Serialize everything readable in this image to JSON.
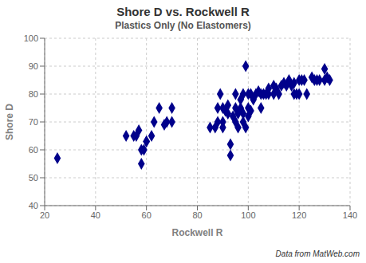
{
  "chart_data": {
    "type": "scatter",
    "title": "Shore D vs. Rockwell R",
    "subtitle": "Plastics Only (No Elastomers)",
    "xlabel": "Rockwell R",
    "ylabel": "Shore D",
    "annotations": [
      "Data from MatWeb.com"
    ],
    "color": "#00008B",
    "marker": "diamond",
    "grid": true,
    "xlim": [
      20,
      140
    ],
    "ylim": [
      40,
      100
    ],
    "xticks": [
      20,
      40,
      60,
      80,
      100,
      120,
      140
    ],
    "yticks": [
      40,
      50,
      60,
      70,
      80,
      90,
      100
    ],
    "x": [
      25,
      52,
      55,
      57,
      58,
      59,
      60,
      62,
      63,
      85,
      87,
      88,
      88,
      89,
      90,
      90,
      91,
      92,
      92,
      93,
      93,
      94,
      95,
      95,
      96,
      96,
      97,
      97,
      98,
      98,
      99,
      99,
      100,
      100,
      101,
      101,
      102,
      103,
      104,
      105,
      105,
      106,
      107,
      108,
      108,
      110,
      110,
      111,
      112,
      113,
      114,
      115,
      116,
      117,
      118,
      118,
      119,
      120,
      120,
      121,
      122,
      123,
      125,
      126,
      127,
      128,
      130,
      130,
      131,
      132,
      56,
      58,
      60,
      65,
      67,
      68,
      70,
      70,
      90,
      95,
      98,
      100
    ],
    "values": [
      57,
      65,
      65,
      67,
      60,
      60,
      63,
      65,
      70,
      68,
      68,
      70,
      75,
      80,
      70,
      68,
      74,
      73,
      76,
      62,
      58,
      72,
      75,
      80,
      68,
      73,
      75,
      78,
      80,
      70,
      68,
      90,
      75,
      80,
      80,
      74,
      78,
      80,
      81,
      80,
      75,
      80,
      80,
      82,
      80,
      83,
      80,
      82,
      80,
      83,
      84,
      83,
      85,
      83,
      84,
      80,
      80,
      85,
      80,
      85,
      85,
      80,
      86,
      85,
      85,
      85,
      85,
      89,
      86,
      85,
      65,
      55,
      63,
      75,
      69,
      70,
      75,
      70,
      75,
      70,
      73,
      72
    ]
  }
}
